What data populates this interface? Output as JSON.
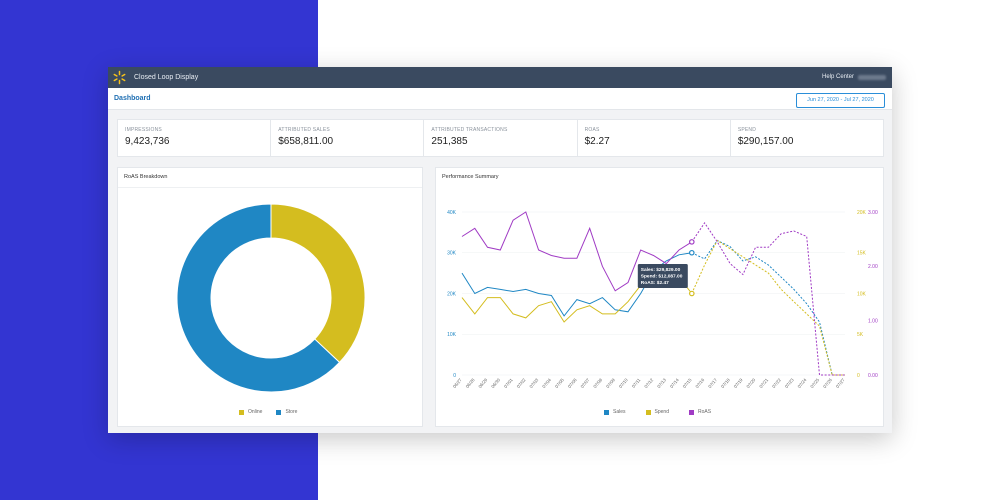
{
  "app": {
    "title": "Closed Loop Display",
    "help": "Help Center",
    "brand_color": "#3a4a60",
    "logo": "spark-logo"
  },
  "nav": {
    "dashboard": "Dashboard",
    "date_range": "Jun 27, 2020 - Jul 27, 2020"
  },
  "kpis": [
    {
      "label": "IMPRESSIONS",
      "value": "9,423,736"
    },
    {
      "label": "ATTRIBUTED SALES",
      "value": "$658,811.00"
    },
    {
      "label": "ATTRIBUTED TRANSACTIONS",
      "value": "251,385"
    },
    {
      "label": "ROAS",
      "value": "$2.27"
    },
    {
      "label": "SPEND",
      "value": "$290,157.00"
    }
  ],
  "roas_card": {
    "title": "RoAS Breakdown",
    "legend": [
      {
        "name": "Online",
        "color": "#d4bd1f"
      },
      {
        "name": "Store",
        "color": "#1f87c4"
      }
    ]
  },
  "perf_card": {
    "title": "Performance Summary",
    "legend": [
      {
        "name": "Sales",
        "color": "#1f87c4"
      },
      {
        "name": "Spend",
        "color": "#d4bd1f"
      },
      {
        "name": "RoAS",
        "color": "#a03bc4"
      }
    ],
    "tooltip": [
      "Sales: $29,829.00",
      "Spend: $12,087.00",
      "RoAS: $2.47"
    ]
  },
  "chart_data": [
    {
      "type": "pie",
      "title": "RoAS Breakdown",
      "donut": true,
      "categories": [
        "Online",
        "Store"
      ],
      "values": [
        37,
        63
      ],
      "colors": [
        "#d4bd1f",
        "#1f87c4"
      ]
    },
    {
      "type": "line",
      "title": "Performance Summary",
      "x": [
        "06/27",
        "06/28",
        "06/29",
        "06/30",
        "07/01",
        "07/02",
        "07/03",
        "07/04",
        "07/05",
        "07/06",
        "07/07",
        "07/08",
        "07/09",
        "07/10",
        "07/11",
        "07/12",
        "07/13",
        "07/14",
        "07/15",
        "07/16",
        "07/17",
        "07/18",
        "07/19",
        "07/20",
        "07/21",
        "07/22",
        "07/23",
        "07/24",
        "07/25",
        "07/26",
        "07/27"
      ],
      "left_axis": {
        "ticks": [
          0,
          10000,
          20000,
          30000,
          40000
        ],
        "tick_labels": [
          "0",
          "10K",
          "20K",
          "30K",
          "40K"
        ],
        "ylim": [
          0,
          40000
        ]
      },
      "right_axis_1": {
        "ticks": [
          0,
          5000,
          10000,
          15000,
          20000
        ],
        "tick_labels": [
          "0",
          "5K",
          "10K",
          "15K",
          "20K"
        ],
        "ylim": [
          0,
          20000
        ]
      },
      "right_axis_2": {
        "ticks": [
          0,
          1,
          2,
          3
        ],
        "tick_labels": [
          "0.00",
          "1.00",
          "2.00",
          "3.00"
        ],
        "ylim": [
          0,
          3
        ]
      },
      "projected_from_index": 18,
      "series": [
        {
          "name": "Sales",
          "axis": "left",
          "color": "#1f87c4",
          "values": [
            25000,
            20000,
            21500,
            21000,
            20500,
            21000,
            20000,
            19500,
            14500,
            18500,
            17500,
            19000,
            16000,
            15500,
            20000,
            25500,
            28000,
            29500,
            30000,
            28500,
            33000,
            31500,
            28000,
            29000,
            27000,
            24000,
            21000,
            17500,
            13000,
            0,
            0
          ]
        },
        {
          "name": "Spend",
          "axis": "right1",
          "color": "#d4bd1f",
          "values": [
            9500,
            7500,
            9500,
            9500,
            7500,
            7000,
            8500,
            9000,
            6500,
            8000,
            8500,
            7500,
            7500,
            9000,
            11000,
            12000,
            13000,
            12000,
            10000,
            13500,
            16500,
            15500,
            14500,
            13500,
            12500,
            10500,
            9000,
            7500,
            6000,
            0,
            0
          ]
        },
        {
          "name": "RoAS",
          "axis": "right2",
          "color": "#a03bc4",
          "values": [
            2.55,
            2.7,
            2.35,
            2.3,
            2.85,
            3.0,
            2.3,
            2.2,
            2.15,
            2.15,
            2.7,
            2.0,
            1.55,
            1.7,
            2.3,
            2.2,
            2.05,
            2.3,
            2.45,
            2.8,
            2.45,
            2.05,
            1.85,
            2.35,
            2.35,
            2.6,
            2.65,
            2.55,
            0,
            0,
            0
          ]
        }
      ]
    }
  ]
}
